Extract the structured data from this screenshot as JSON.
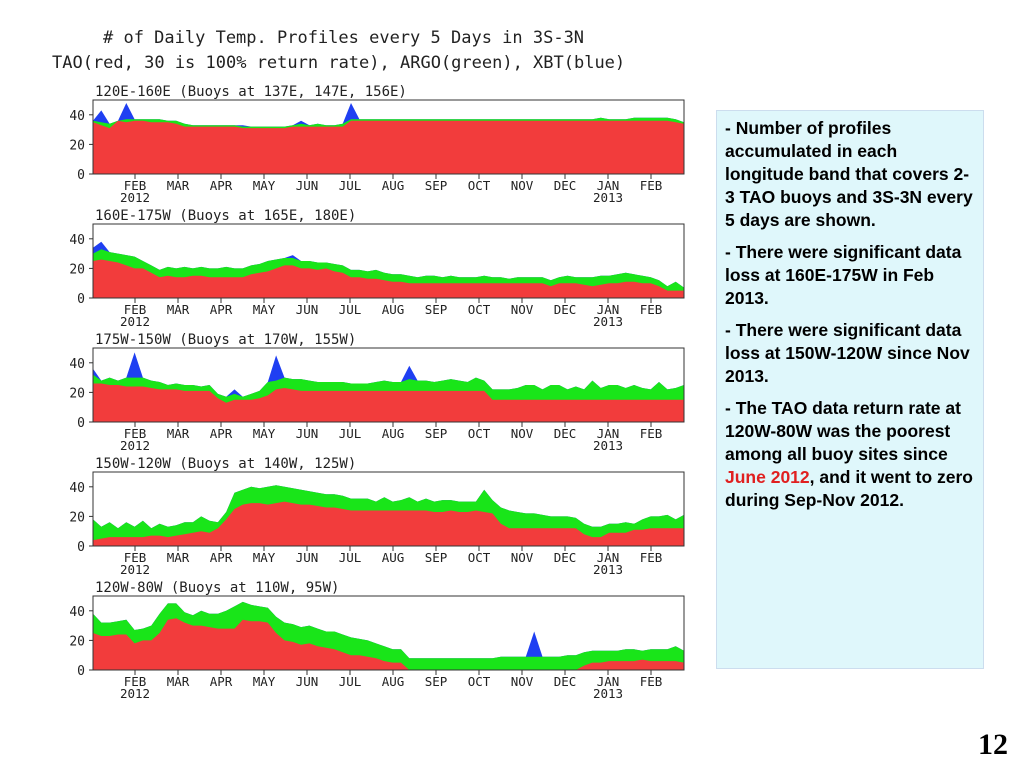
{
  "titles": {
    "line1": "# of Daily Temp. Profiles every 5 Days in 3S-3N",
    "line2": "TAO(red, 30 is 100% return rate), ARGO(green), XBT(blue)"
  },
  "colors": {
    "tao": "#f23c3c",
    "argo": "#19e519",
    "xbt": "#1f3ff2"
  },
  "chart_data": [
    {
      "type": "area",
      "title": "120E-160E (Buoys at 137E, 147E, 156E)",
      "yticks": [
        "0",
        "20",
        "40"
      ],
      "ylim": [
        0,
        50
      ],
      "months": [
        "FEB",
        "MAR",
        "APR",
        "MAY",
        "JUN",
        "JUL",
        "AUG",
        "SEP",
        "OCT",
        "NOV",
        "DEC",
        "JAN",
        "FEB"
      ],
      "year_labels": [
        {
          "month_index": 0,
          "label": "2012"
        },
        {
          "month_index": 11,
          "label": "2013"
        }
      ],
      "tao": [
        35,
        33,
        31,
        36,
        35,
        36,
        36,
        35,
        35,
        35,
        34,
        32,
        32,
        32,
        32,
        32,
        32,
        32,
        31,
        31,
        31,
        31,
        31,
        31,
        32,
        32,
        32,
        32,
        32,
        32,
        32,
        36,
        36,
        36,
        36,
        36,
        36,
        36,
        36,
        36,
        36,
        36,
        36,
        36,
        36,
        36,
        36,
        36,
        36,
        36,
        36,
        36,
        36,
        36,
        36,
        36,
        36,
        36,
        36,
        36,
        36,
        36,
        36,
        36,
        36,
        36,
        36,
        36,
        36,
        36,
        35,
        34
      ],
      "argo": [
        36,
        35,
        34,
        36,
        37,
        37,
        37,
        37,
        37,
        36,
        36,
        34,
        33,
        33,
        33,
        33,
        33,
        33,
        32,
        32,
        32,
        32,
        32,
        32,
        33,
        34,
        33,
        34,
        33,
        33,
        34,
        37,
        37,
        37,
        37,
        37,
        37,
        37,
        37,
        37,
        37,
        37,
        37,
        37,
        37,
        37,
        37,
        37,
        37,
        37,
        37,
        37,
        37,
        37,
        37,
        37,
        37,
        37,
        37,
        37,
        37,
        38,
        37,
        37,
        37,
        38,
        38,
        38,
        38,
        38,
        37,
        35
      ],
      "xbt": [
        36,
        43,
        34,
        36,
        48,
        37,
        37,
        37,
        37,
        36,
        36,
        34,
        33,
        33,
        33,
        33,
        33,
        33,
        33,
        32,
        32,
        32,
        32,
        32,
        33,
        36,
        33,
        34,
        33,
        33,
        34,
        48,
        37,
        37,
        37,
        37,
        37,
        37,
        37,
        37,
        37,
        37,
        37,
        37,
        37,
        37,
        37,
        37,
        37,
        37,
        37,
        37,
        37,
        37,
        37,
        37,
        37,
        37,
        37,
        37,
        37,
        38,
        37,
        37,
        37,
        38,
        38,
        38,
        38,
        38,
        37,
        35
      ]
    },
    {
      "type": "area",
      "title": "160E-175W (Buoys at 165E, 180E)",
      "yticks": [
        "0",
        "20",
        "40"
      ],
      "ylim": [
        0,
        50
      ],
      "months": [
        "FEB",
        "MAR",
        "APR",
        "MAY",
        "JUN",
        "JUL",
        "AUG",
        "SEP",
        "OCT",
        "NOV",
        "DEC",
        "JAN",
        "FEB"
      ],
      "year_labels": [
        {
          "month_index": 0,
          "label": "2012"
        },
        {
          "month_index": 11,
          "label": "2013"
        }
      ],
      "tao": [
        25,
        26,
        25,
        24,
        22,
        20,
        20,
        17,
        14,
        15,
        14,
        14,
        15,
        15,
        14,
        14,
        14,
        14,
        14,
        16,
        17,
        18,
        20,
        22,
        22,
        20,
        20,
        19,
        20,
        18,
        17,
        14,
        14,
        13,
        13,
        12,
        11,
        11,
        10,
        10,
        10,
        10,
        10,
        10,
        10,
        10,
        10,
        10,
        10,
        10,
        10,
        10,
        10,
        10,
        10,
        8,
        10,
        10,
        10,
        9,
        8,
        9,
        10,
        10,
        11,
        11,
        10,
        10,
        8,
        5,
        5,
        5
      ],
      "argo": [
        30,
        33,
        31,
        30,
        29,
        28,
        25,
        22,
        19,
        21,
        20,
        21,
        20,
        21,
        20,
        20,
        21,
        20,
        20,
        22,
        23,
        25,
        26,
        27,
        27,
        25,
        25,
        24,
        24,
        23,
        22,
        19,
        19,
        18,
        19,
        17,
        16,
        16,
        15,
        14,
        15,
        15,
        14,
        15,
        14,
        14,
        14,
        15,
        14,
        14,
        13,
        14,
        14,
        14,
        14,
        12,
        14,
        15,
        14,
        14,
        14,
        15,
        15,
        16,
        17,
        16,
        15,
        14,
        12,
        8,
        11,
        7
      ],
      "xbt": [
        34,
        38,
        31,
        30,
        29,
        28,
        25,
        22,
        19,
        21,
        20,
        21,
        20,
        21,
        20,
        20,
        21,
        20,
        20,
        22,
        23,
        25,
        26,
        27,
        29,
        25,
        25,
        24,
        24,
        23,
        22,
        19,
        19,
        18,
        19,
        17,
        16,
        16,
        15,
        14,
        15,
        15,
        14,
        15,
        14,
        14,
        14,
        15,
        14,
        14,
        13,
        14,
        14,
        14,
        14,
        12,
        14,
        15,
        14,
        14,
        14,
        15,
        15,
        16,
        17,
        16,
        15,
        14,
        12,
        8,
        11,
        7
      ]
    },
    {
      "type": "area",
      "title": "175W-150W (Buoys at 170W, 155W)",
      "yticks": [
        "0",
        "20",
        "40"
      ],
      "ylim": [
        0,
        50
      ],
      "months": [
        "FEB",
        "MAR",
        "APR",
        "MAY",
        "JUN",
        "JUL",
        "AUG",
        "SEP",
        "OCT",
        "NOV",
        "DEC",
        "JAN",
        "FEB"
      ],
      "year_labels": [
        {
          "month_index": 0,
          "label": "2012"
        },
        {
          "month_index": 11,
          "label": "2013"
        }
      ],
      "tao": [
        26,
        26,
        25,
        25,
        24,
        24,
        24,
        23,
        22,
        22,
        22,
        21,
        21,
        21,
        21,
        16,
        13,
        15,
        15,
        15,
        16,
        18,
        22,
        23,
        22,
        21,
        21,
        21,
        21,
        21,
        21,
        21,
        21,
        21,
        21,
        21,
        21,
        21,
        21,
        21,
        21,
        21,
        21,
        21,
        21,
        21,
        21,
        21,
        15,
        15,
        15,
        15,
        15,
        15,
        15,
        15,
        15,
        15,
        15,
        15,
        15,
        15,
        15,
        15,
        15,
        15,
        15,
        15,
        15,
        15,
        15,
        15
      ],
      "argo": [
        32,
        28,
        30,
        28,
        30,
        30,
        30,
        28,
        27,
        25,
        26,
        25,
        25,
        24,
        25,
        19,
        17,
        19,
        17,
        19,
        21,
        27,
        28,
        30,
        29,
        29,
        28,
        27,
        27,
        27,
        27,
        26,
        26,
        26,
        27,
        28,
        27,
        27,
        29,
        28,
        28,
        27,
        28,
        29,
        28,
        27,
        30,
        28,
        22,
        22,
        22,
        23,
        25,
        25,
        22,
        25,
        25,
        22,
        24,
        22,
        28,
        23,
        25,
        25,
        23,
        25,
        23,
        22,
        27,
        22,
        23,
        25
      ],
      "xbt": [
        36,
        28,
        30,
        28,
        30,
        47,
        30,
        28,
        27,
        25,
        26,
        25,
        25,
        24,
        25,
        19,
        17,
        22,
        17,
        19,
        21,
        27,
        45,
        30,
        29,
        29,
        28,
        27,
        27,
        27,
        27,
        26,
        26,
        26,
        27,
        28,
        27,
        27,
        38,
        28,
        28,
        27,
        28,
        29,
        28,
        27,
        30,
        28,
        22,
        22,
        22,
        23,
        25,
        25,
        22,
        25,
        25,
        22,
        24,
        22,
        28,
        23,
        25,
        25,
        23,
        25,
        23,
        22,
        27,
        22,
        23,
        25
      ]
    },
    {
      "type": "area",
      "title": "150W-120W (Buoys at 140W, 125W)",
      "yticks": [
        "0",
        "20",
        "40"
      ],
      "ylim": [
        0,
        50
      ],
      "months": [
        "FEB",
        "MAR",
        "APR",
        "MAY",
        "JUN",
        "JUL",
        "AUG",
        "SEP",
        "OCT",
        "NOV",
        "DEC",
        "JAN",
        "FEB"
      ],
      "year_labels": [
        {
          "month_index": 0,
          "label": "2012"
        },
        {
          "month_index": 11,
          "label": "2013"
        }
      ],
      "tao": [
        4,
        5,
        6,
        6,
        6,
        6,
        6,
        7,
        7,
        6,
        7,
        8,
        9,
        10,
        9,
        12,
        18,
        25,
        28,
        29,
        29,
        28,
        29,
        30,
        29,
        28,
        28,
        27,
        26,
        26,
        25,
        24,
        24,
        24,
        24,
        24,
        24,
        24,
        24,
        24,
        24,
        23,
        23,
        24,
        23,
        23,
        24,
        23,
        22,
        15,
        12,
        12,
        12,
        12,
        12,
        12,
        12,
        12,
        12,
        8,
        6,
        6,
        9,
        9,
        9,
        11,
        11,
        12,
        12,
        12,
        12,
        12
      ],
      "argo": [
        18,
        13,
        16,
        12,
        16,
        13,
        17,
        12,
        15,
        13,
        14,
        16,
        16,
        20,
        17,
        16,
        23,
        36,
        38,
        40,
        39,
        40,
        41,
        40,
        39,
        38,
        37,
        36,
        35,
        35,
        34,
        32,
        32,
        32,
        30,
        33,
        30,
        31,
        33,
        30,
        32,
        30,
        31,
        31,
        30,
        30,
        30,
        38,
        31,
        26,
        24,
        23,
        22,
        22,
        21,
        20,
        20,
        20,
        19,
        15,
        13,
        13,
        15,
        15,
        16,
        15,
        18,
        20,
        20,
        21,
        18,
        21
      ],
      "xbt": [
        18,
        13,
        16,
        12,
        16,
        13,
        17,
        12,
        15,
        13,
        14,
        16,
        16,
        20,
        17,
        16,
        23,
        36,
        38,
        40,
        39,
        40,
        41,
        40,
        39,
        38,
        37,
        36,
        35,
        35,
        34,
        32,
        32,
        32,
        30,
        33,
        30,
        31,
        33,
        30,
        32,
        30,
        31,
        31,
        30,
        30,
        30,
        38,
        31,
        26,
        24,
        23,
        22,
        22,
        21,
        20,
        20,
        20,
        19,
        15,
        13,
        13,
        15,
        15,
        16,
        15,
        18,
        20,
        20,
        21,
        18,
        21
      ]
    },
    {
      "type": "area",
      "title": "120W-80W (Buoys at 110W, 95W)",
      "yticks": [
        "0",
        "20",
        "40"
      ],
      "ylim": [
        0,
        50
      ],
      "months": [
        "FEB",
        "MAR",
        "APR",
        "MAY",
        "JUN",
        "JUL",
        "AUG",
        "SEP",
        "OCT",
        "NOV",
        "DEC",
        "JAN",
        "FEB"
      ],
      "year_labels": [
        {
          "month_index": 0,
          "label": "2012"
        },
        {
          "month_index": 11,
          "label": "2013"
        }
      ],
      "tao": [
        25,
        23,
        23,
        24,
        24,
        18,
        20,
        20,
        25,
        34,
        35,
        32,
        30,
        30,
        29,
        28,
        28,
        28,
        34,
        33,
        33,
        32,
        25,
        20,
        19,
        17,
        18,
        16,
        15,
        14,
        12,
        10,
        10,
        9,
        8,
        6,
        5,
        5,
        0,
        0,
        0,
        0,
        0,
        0,
        0,
        0,
        0,
        0,
        0,
        0,
        0,
        0,
        0,
        0,
        0,
        0,
        0,
        0,
        0,
        3,
        5,
        5,
        6,
        6,
        6,
        6,
        7,
        6,
        6,
        6,
        6,
        5
      ],
      "argo": [
        38,
        32,
        32,
        33,
        34,
        27,
        28,
        30,
        38,
        45,
        45,
        39,
        37,
        40,
        38,
        38,
        40,
        43,
        46,
        44,
        43,
        42,
        36,
        32,
        31,
        29,
        30,
        28,
        26,
        26,
        24,
        22,
        21,
        20,
        18,
        16,
        14,
        14,
        8,
        8,
        8,
        8,
        8,
        8,
        8,
        8,
        8,
        8,
        8,
        9,
        9,
        9,
        9,
        9,
        9,
        9,
        9,
        10,
        10,
        12,
        13,
        13,
        13,
        13,
        14,
        14,
        13,
        14,
        14,
        14,
        16,
        13
      ],
      "xbt": [
        38,
        32,
        32,
        33,
        34,
        27,
        28,
        30,
        38,
        45,
        45,
        39,
        37,
        40,
        38,
        38,
        40,
        43,
        46,
        44,
        43,
        42,
        36,
        32,
        31,
        29,
        30,
        28,
        26,
        26,
        24,
        22,
        21,
        20,
        18,
        16,
        14,
        14,
        8,
        8,
        8,
        8,
        8,
        8,
        8,
        8,
        8,
        8,
        8,
        9,
        9,
        9,
        9,
        26,
        9,
        9,
        9,
        10,
        10,
        12,
        13,
        13,
        13,
        13,
        14,
        14,
        13,
        14,
        14,
        14,
        16,
        13
      ]
    }
  ],
  "notes": [
    {
      "dash": "-",
      "text": " Number of profiles accumulated in each longitude band that covers 2-3 TAO buoys and 3S-3N every 5 days are shown."
    },
    {
      "dash": "-",
      "text": " There were significant data loss at 160E-175W in Feb 2013."
    },
    {
      "dash": "-",
      "text": " There were significant data loss at 150W-120W since Nov 2013."
    },
    {
      "dash": "-",
      "text_before": " The TAO data return rate at 120W-80W was the poorest among all buoy sites since ",
      "highlight": "June 2012",
      "text_after": ", and it went to zero during Sep-Nov 2012."
    }
  ],
  "page_number": "12"
}
